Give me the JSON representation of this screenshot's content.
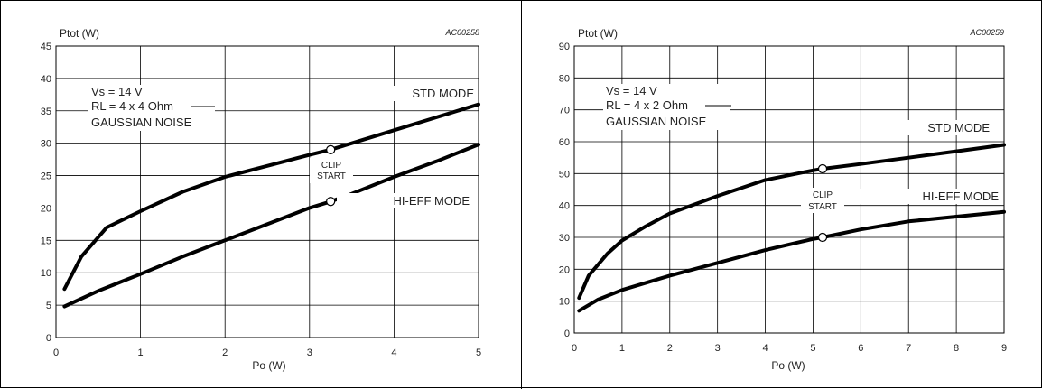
{
  "chart_data": [
    {
      "type": "line",
      "code": "AC00258",
      "xlabel": "Po (W)",
      "ylabel": "Ptot (W)",
      "xlim": [
        0,
        5
      ],
      "ylim": [
        0,
        45
      ],
      "xticks": [
        "0",
        "1",
        "2",
        "3",
        "4",
        "5"
      ],
      "yticks": [
        "0",
        "5",
        "10",
        "15",
        "20",
        "25",
        "30",
        "35",
        "40",
        "45"
      ],
      "grid": true,
      "conditions": [
        "Vs = 14 V",
        "RL = 4 x 4 Ohm",
        "GAUSSIAN NOISE"
      ],
      "clip_label": [
        "CLIP",
        "START"
      ],
      "series": [
        {
          "name": "STD MODE",
          "x": [
            0.1,
            0.3,
            0.6,
            1.0,
            1.5,
            2.0,
            2.5,
            3.0,
            3.25,
            3.5,
            4.0,
            4.5,
            5.0
          ],
          "y": [
            7.5,
            12.5,
            17.0,
            19.5,
            22.5,
            24.8,
            26.5,
            28.2,
            29.0,
            30.0,
            32.0,
            34.0,
            36.0
          ]
        },
        {
          "name": "HI-EFF MODE",
          "x": [
            0.1,
            0.5,
            1.0,
            1.5,
            2.0,
            2.5,
            3.0,
            3.25,
            3.5,
            4.0,
            4.5,
            5.0
          ],
          "y": [
            4.8,
            7.2,
            9.8,
            12.5,
            15.0,
            17.5,
            20.0,
            21.0,
            22.2,
            24.8,
            27.2,
            29.8
          ]
        }
      ],
      "clip_points": [
        {
          "x": 3.25,
          "y": 29.0
        },
        {
          "x": 3.25,
          "y": 21.0
        }
      ]
    },
    {
      "type": "line",
      "code": "AC00259",
      "xlabel": "Po (W)",
      "ylabel": "Ptot (W)",
      "xlim": [
        0,
        9
      ],
      "ylim": [
        0,
        90
      ],
      "xticks": [
        "0",
        "1",
        "2",
        "3",
        "4",
        "5",
        "6",
        "7",
        "8",
        "9"
      ],
      "yticks": [
        "0",
        "10",
        "20",
        "30",
        "40",
        "50",
        "60",
        "70",
        "80",
        "90"
      ],
      "grid": true,
      "conditions": [
        "Vs = 14 V",
        "RL = 4 x 2 Ohm",
        "GAUSSIAN NOISE"
      ],
      "clip_label": [
        "CLIP",
        "START"
      ],
      "series": [
        {
          "name": "STD MODE",
          "x": [
            0.1,
            0.3,
            0.7,
            1.0,
            1.5,
            2.0,
            3.0,
            4.0,
            5.0,
            5.2,
            6.0,
            7.0,
            8.0,
            9.0
          ],
          "y": [
            11.0,
            18.0,
            25.0,
            29.0,
            33.5,
            37.5,
            43.0,
            48.0,
            51.0,
            51.5,
            53.0,
            55.0,
            57.0,
            59.0
          ]
        },
        {
          "name": "HI-EFF MODE",
          "x": [
            0.1,
            0.5,
            1.0,
            2.0,
            3.0,
            4.0,
            5.0,
            5.2,
            6.0,
            7.0,
            8.0,
            9.0
          ],
          "y": [
            7.0,
            10.5,
            13.5,
            18.0,
            22.0,
            26.0,
            29.5,
            30.0,
            32.5,
            35.0,
            36.5,
            38.0
          ]
        }
      ],
      "clip_points": [
        {
          "x": 5.2,
          "y": 51.5
        },
        {
          "x": 5.2,
          "y": 30.0
        }
      ]
    }
  ]
}
